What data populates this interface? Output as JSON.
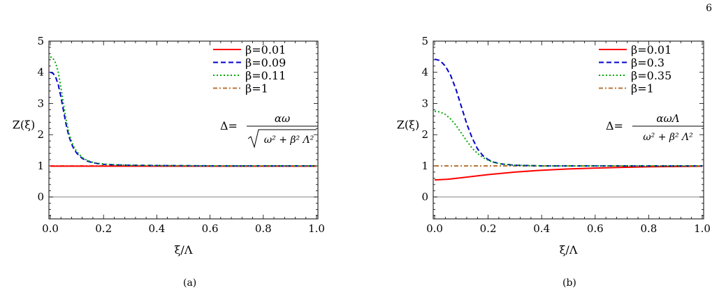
{
  "page_number": "6",
  "chart_data": [
    {
      "type": "line",
      "caption": "(a)",
      "xlabel": "ξ/Λ",
      "ylabel": "Z(ξ)",
      "xlim": [
        0,
        1.0
      ],
      "ylim": [
        -0.7,
        5
      ],
      "xticks": [
        "0.0",
        "0.2",
        "0.4",
        "0.6",
        "0.8",
        "1.0"
      ],
      "yticks": [
        "0",
        "1",
        "2",
        "3",
        "4",
        "5"
      ],
      "grid": false,
      "legend_position": "top-right",
      "formula": {
        "lhs": "Δ=",
        "numerator": "αω",
        "denominator": "ω² + β² Λ²",
        "radical": true
      },
      "series": [
        {
          "name": "β=0.01",
          "color": "#ff0000",
          "dash": "solid",
          "x": [
            0,
            0.05,
            0.1,
            0.2,
            0.4,
            0.6,
            0.8,
            1.0
          ],
          "y": [
            0.99,
            0.99,
            0.99,
            0.99,
            0.99,
            0.99,
            0.99,
            0.99
          ]
        },
        {
          "name": "β=0.09",
          "color": "#0000cc",
          "dash": "dashed",
          "x": [
            0,
            0.01,
            0.02,
            0.03,
            0.04,
            0.05,
            0.06,
            0.07,
            0.08,
            0.09,
            0.1,
            0.12,
            0.14,
            0.16,
            0.18,
            0.2,
            0.25,
            0.3,
            0.4,
            0.6,
            0.8,
            1.0
          ],
          "y": [
            4.0,
            3.97,
            3.85,
            3.6,
            3.2,
            2.75,
            2.3,
            1.95,
            1.7,
            1.52,
            1.4,
            1.24,
            1.15,
            1.1,
            1.07,
            1.05,
            1.03,
            1.02,
            1.01,
            1.0,
            1.0,
            1.0
          ]
        },
        {
          "name": "β=0.11",
          "color": "#00aa00",
          "dash": "dotted",
          "x": [
            0,
            0.01,
            0.02,
            0.03,
            0.04,
            0.05,
            0.06,
            0.07,
            0.08,
            0.09,
            0.1,
            0.12,
            0.14,
            0.16,
            0.18,
            0.2,
            0.25,
            0.3,
            0.4,
            0.6,
            0.8,
            1.0
          ],
          "y": [
            4.5,
            4.45,
            4.3,
            4.0,
            3.5,
            2.95,
            2.45,
            2.05,
            1.78,
            1.58,
            1.45,
            1.27,
            1.17,
            1.11,
            1.08,
            1.06,
            1.03,
            1.02,
            1.01,
            1.0,
            1.0,
            1.0
          ]
        },
        {
          "name": "β=1",
          "color": "#b87333",
          "dash": "dashdot",
          "x": [
            0,
            0.2,
            0.4,
            0.6,
            0.8,
            1.0
          ],
          "y": [
            1,
            1,
            1,
            1,
            1,
            1
          ]
        }
      ]
    },
    {
      "type": "line",
      "caption": "(b)",
      "xlabel": "ξ/Λ",
      "ylabel": "Z(ξ)",
      "xlim": [
        0,
        1.0
      ],
      "ylim": [
        -0.7,
        5
      ],
      "xticks": [
        "0.0",
        "0.2",
        "0.4",
        "0.6",
        "0.8",
        "1.0"
      ],
      "yticks": [
        "0",
        "1",
        "2",
        "3",
        "4",
        "5"
      ],
      "grid": false,
      "legend_position": "top-right",
      "formula": {
        "lhs": "Δ=",
        "numerator": "αωΛ",
        "denominator": "ω² + β² Λ²",
        "radical": false
      },
      "series": [
        {
          "name": "β=0.01",
          "color": "#ff0000",
          "dash": "solid",
          "x": [
            0,
            0.05,
            0.1,
            0.15,
            0.2,
            0.3,
            0.4,
            0.5,
            0.6,
            0.7,
            0.8,
            0.9,
            1.0
          ],
          "y": [
            0.55,
            0.57,
            0.62,
            0.67,
            0.72,
            0.8,
            0.86,
            0.9,
            0.93,
            0.95,
            0.97,
            0.98,
            0.99
          ]
        },
        {
          "name": "β=0.3",
          "color": "#0000cc",
          "dash": "dashed",
          "x": [
            0,
            0.02,
            0.04,
            0.06,
            0.08,
            0.1,
            0.12,
            0.14,
            0.16,
            0.18,
            0.2,
            0.22,
            0.25,
            0.3,
            0.35,
            0.4,
            0.5,
            0.6,
            0.8,
            1.0
          ],
          "y": [
            4.42,
            4.38,
            4.2,
            3.9,
            3.45,
            2.9,
            2.35,
            1.9,
            1.55,
            1.33,
            1.2,
            1.12,
            1.06,
            1.02,
            1.01,
            1.0,
            1.0,
            1.0,
            1.0,
            1.0
          ]
        },
        {
          "name": "β=0.35",
          "color": "#00aa00",
          "dash": "dotted",
          "x": [
            0,
            0.02,
            0.04,
            0.06,
            0.08,
            0.1,
            0.12,
            0.14,
            0.16,
            0.18,
            0.2,
            0.22,
            0.25,
            0.3,
            0.35,
            0.4,
            0.5,
            0.6,
            0.8,
            1.0
          ],
          "y": [
            2.75,
            2.73,
            2.65,
            2.5,
            2.3,
            2.05,
            1.8,
            1.57,
            1.4,
            1.27,
            1.18,
            1.11,
            1.06,
            1.02,
            1.01,
            1.0,
            1.0,
            1.0,
            1.0,
            1.0
          ]
        },
        {
          "name": "β=1",
          "color": "#b87333",
          "dash": "dashdot",
          "x": [
            0,
            0.2,
            0.4,
            0.6,
            0.8,
            1.0
          ],
          "y": [
            1,
            1,
            1,
            1,
            1,
            1
          ]
        }
      ]
    }
  ]
}
